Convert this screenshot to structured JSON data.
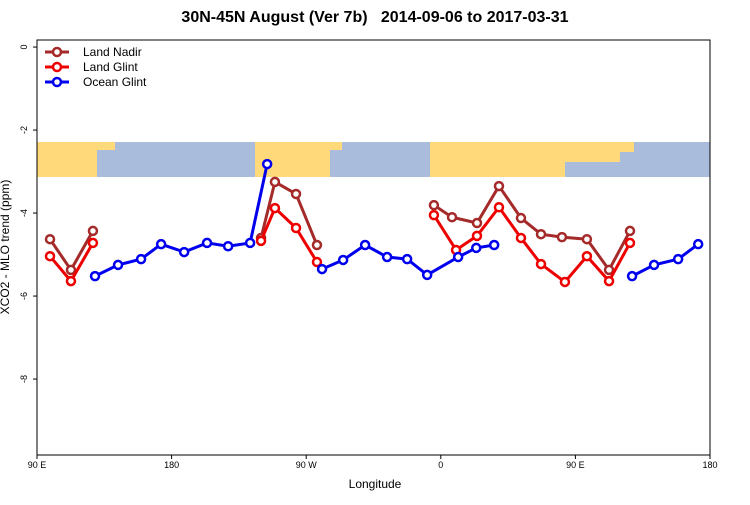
{
  "chart_data": {
    "type": "line",
    "title": "30N-45N August (Ver 7b)   2014-09-06 to 2017-03-31",
    "x_label": "Longitude",
    "y_label": "XCO2 - MLO trend (ppm)",
    "xlim": [
      90,
      540
    ],
    "ylim": [
      -9.83,
      0.17
    ],
    "xticks": [
      {
        "value": 90,
        "label": "90 E"
      },
      180,
      {
        "value": 270,
        "label": "90 W"
      },
      {
        "value": 360,
        "label": "0"
      },
      {
        "value": 450,
        "label": "90 E"
      },
      {
        "value": 540,
        "label": "180"
      }
    ],
    "yticks": [
      0,
      -2,
      -4,
      -6,
      -8
    ],
    "legend": "top-left",
    "series": [
      {
        "name": "Land Nadir",
        "color": "#a52a2a",
        "x": [
          98.7,
          112.7,
          127.4,
          null,
          239.8,
          249.1,
          263.2,
          277.2,
          null,
          355.4,
          367.5,
          384.2,
          398.9,
          413.6,
          427,
          441,
          457.7,
          472.5,
          486.5
        ],
        "values": [
          -4.63,
          -5.37,
          -4.43,
          null,
          -4.6,
          -3.25,
          -3.54,
          -4.77,
          null,
          -3.81,
          -4.1,
          -4.24,
          -3.35,
          -4.12,
          -4.51,
          -4.58,
          -4.63,
          -5.37,
          -4.43
        ]
      },
      {
        "name": "Land Glint",
        "color": "#ee0000",
        "x": [
          98.7,
          112.7,
          127.4,
          null,
          239.8,
          249.1,
          263.2,
          277.2,
          null,
          355.4,
          370.2,
          384.2,
          398.9,
          413.6,
          427,
          443,
          457.7,
          472.5,
          486.5
        ],
        "values": [
          -5.04,
          -5.64,
          -4.72,
          null,
          -4.67,
          -3.88,
          -4.36,
          -5.18,
          null,
          -4.05,
          -4.89,
          -4.55,
          -3.86,
          -4.6,
          -5.23,
          -5.66,
          -5.04,
          -5.64,
          -4.72
        ]
      },
      {
        "name": "Ocean Glint",
        "color": "#0000ee",
        "x": [
          128.8,
          144.2,
          159.6,
          173,
          188.4,
          203.7,
          217.8,
          232.5,
          243.9,
          null,
          280.6,
          294.7,
          309.4,
          324.1,
          337.5,
          350.9,
          371.6,
          383.7,
          395.7,
          null,
          487.9,
          502.6,
          518.7,
          532.1
        ],
        "values": [
          -5.52,
          -5.25,
          -5.11,
          -4.75,
          -4.94,
          -4.72,
          -4.8,
          -4.72,
          -2.82,
          null,
          -5.35,
          -5.13,
          -4.77,
          -5.06,
          -5.11,
          -5.49,
          -5.06,
          -4.84,
          -4.77,
          null,
          -5.52,
          -5.25,
          -5.11,
          -4.75
        ]
      }
    ]
  }
}
